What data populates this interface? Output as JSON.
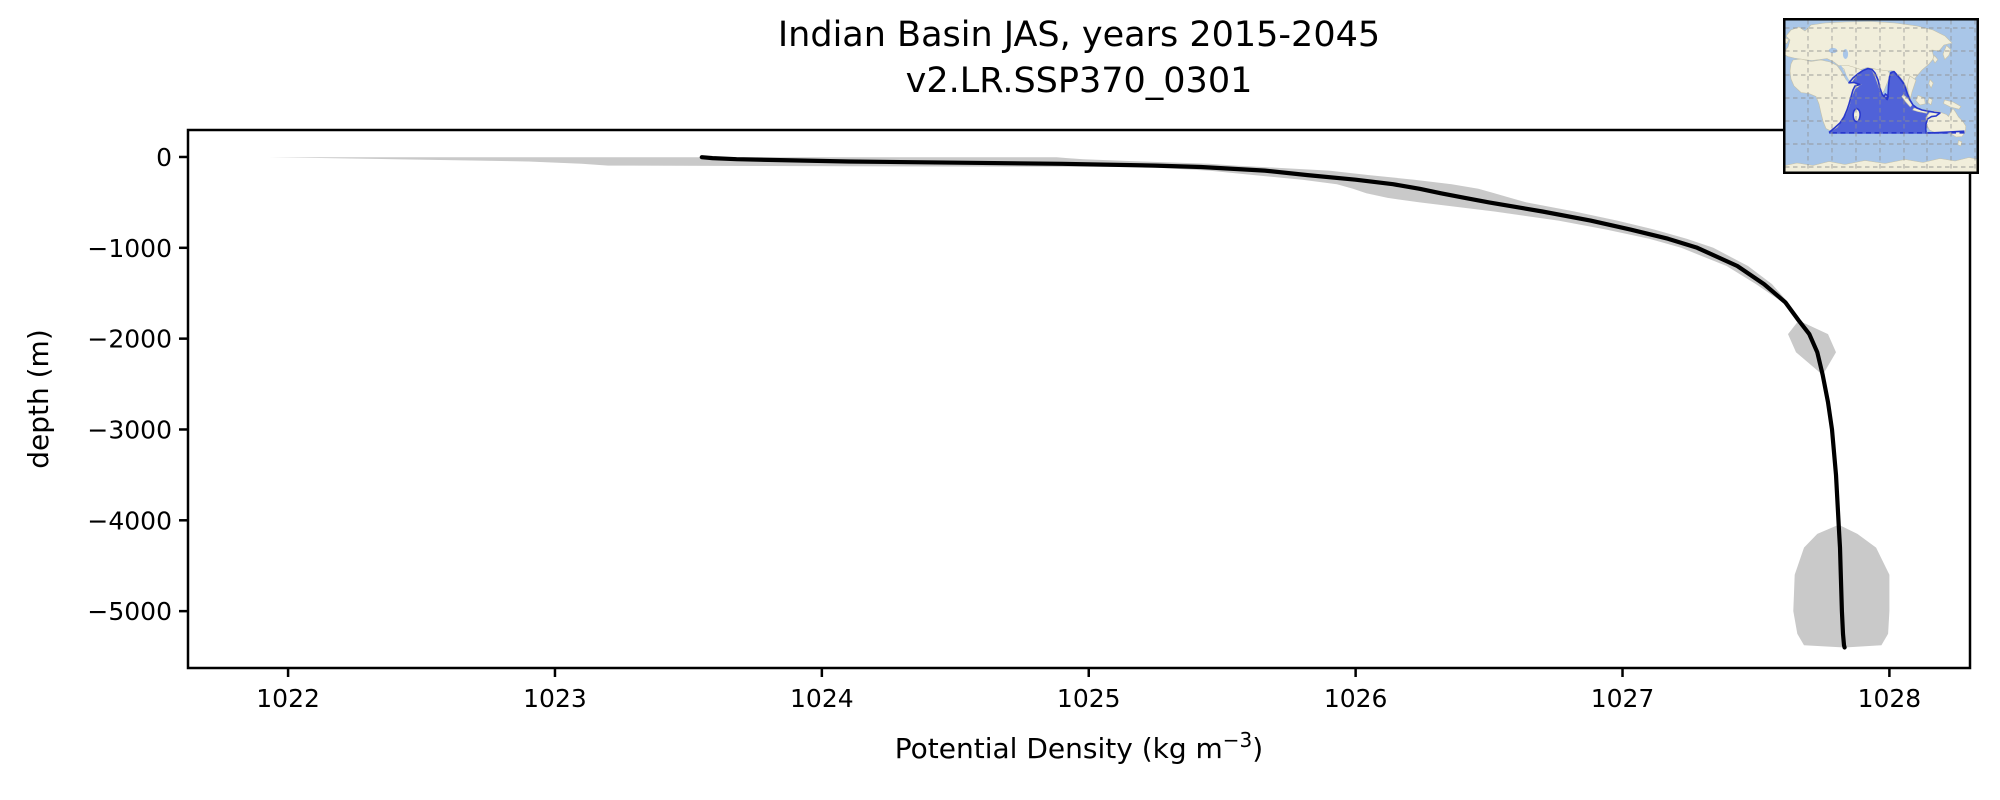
{
  "figure": {
    "background": "#ffffff"
  },
  "chart_data": {
    "type": "line",
    "title": "Indian Basin JAS, years 2015-2045",
    "subtitle": "v2.LR.SSP370_0301",
    "xlabel": {
      "prefix": "Potential Density (kg m",
      "sup": "−3",
      "suffix": ")"
    },
    "ylabel": "depth (m)",
    "xlim": [
      1021.625,
      1028.302
    ],
    "ylim": [
      -5626,
      297
    ],
    "grid": false,
    "xticks": [
      1022,
      1023,
      1024,
      1025,
      1026,
      1027,
      1028
    ],
    "xtick_labels": [
      "1022",
      "1023",
      "1024",
      "1025",
      "1026",
      "1027",
      "1028"
    ],
    "yticks": [
      0,
      -1000,
      -2000,
      -3000,
      -4000,
      -5000
    ],
    "ytick_labels": [
      "0",
      "−1000",
      "−2000",
      "−3000",
      "−4000",
      "−5000"
    ],
    "series": [
      {
        "name": "mean potential density",
        "color": "#000000",
        "linewidth": 4.2
      }
    ],
    "band": {
      "name": "spread (std dev) of potential density",
      "color": "#c9c9c9"
    },
    "profile": {
      "columns": [
        "depth_m",
        "mean",
        "band_lo",
        "band_hi"
      ],
      "rows": [
        [
          -2,
          1023.55,
          1021.93,
          1024.88
        ],
        [
          -12,
          1023.59,
          1022.15,
          1024.92
        ],
        [
          -25,
          1023.68,
          1022.4,
          1024.98
        ],
        [
          -50,
          1024.1,
          1022.9,
          1025.2
        ],
        [
          -75,
          1024.9,
          1023.1,
          1025.45
        ],
        [
          -95,
          1025.25,
          1023.2,
          1025.55
        ],
        [
          -110,
          1025.42,
          1025.2,
          1025.65
        ],
        [
          -150,
          1025.66,
          1025.45,
          1025.9
        ],
        [
          -200,
          1025.82,
          1025.62,
          1026.05
        ],
        [
          -250,
          1026.0,
          1025.8,
          1026.22
        ],
        [
          -300,
          1026.14,
          1025.93,
          1026.36
        ],
        [
          -350,
          1026.24,
          1025.99,
          1026.46
        ],
        [
          -400,
          1026.32,
          1026.04,
          1026.52
        ],
        [
          -450,
          1026.41,
          1026.12,
          1026.58
        ],
        [
          -500,
          1026.5,
          1026.24,
          1026.64
        ],
        [
          -600,
          1026.7,
          1026.52,
          1026.82
        ],
        [
          -700,
          1026.88,
          1026.76,
          1026.98
        ],
        [
          -800,
          1027.03,
          1026.94,
          1027.12
        ],
        [
          -900,
          1027.17,
          1027.1,
          1027.24
        ],
        [
          -1000,
          1027.28,
          1027.22,
          1027.34
        ],
        [
          -1200,
          1027.43,
          1027.39,
          1027.47
        ],
        [
          -1400,
          1027.53,
          1027.5,
          1027.56
        ],
        [
          -1600,
          1027.61,
          1027.6,
          1027.62
        ],
        [
          -1800,
          1027.66,
          null,
          null
        ],
        [
          -1950,
          1027.7,
          1027.62,
          1027.77
        ],
        [
          -2150,
          1027.73,
          1027.65,
          1027.8
        ],
        [
          -2400,
          1027.75,
          null,
          null
        ],
        [
          -2700,
          1027.77,
          null,
          null
        ],
        [
          -3000,
          1027.785,
          null,
          null
        ],
        [
          -3500,
          1027.8,
          null,
          null
        ],
        [
          -4050,
          1027.81,
          null,
          null
        ],
        [
          -4150,
          1027.812,
          1027.73,
          1027.88
        ],
        [
          -4300,
          1027.815,
          1027.68,
          1027.95
        ],
        [
          -4600,
          1027.818,
          1027.645,
          1028.0
        ],
        [
          -5000,
          1027.822,
          1027.64,
          1028.0
        ],
        [
          -5250,
          1027.826,
          1027.655,
          1027.995
        ],
        [
          -5375,
          1027.83,
          1027.68,
          1027.97
        ],
        [
          -5400,
          1027.832,
          null,
          null
        ]
      ]
    }
  },
  "inset_map": {
    "name": "Indian Basin region locator map",
    "ocean_color": "#a9c6e8",
    "land_color": "#f1eedb",
    "land_edge_color": "#c4c0a9",
    "region_fill": "#5062d8",
    "region_stroke": "#2838cc",
    "grid_color": "#8f8f8f",
    "border_color": "#000000"
  }
}
